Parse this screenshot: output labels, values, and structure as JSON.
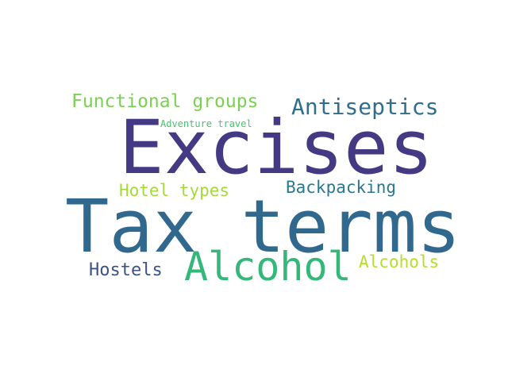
{
  "word_cloud": {
    "words": [
      {
        "text": "Excises",
        "color": "#443983"
      },
      {
        "text": "Tax terms",
        "color": "#31688e"
      },
      {
        "text": "Alcohol",
        "color": "#35b779"
      },
      {
        "text": "Antiseptics",
        "color": "#2f6f8d"
      },
      {
        "text": "Functional groups",
        "color": "#7ad151"
      },
      {
        "text": "Adventure travel",
        "color": "#4ac16d"
      },
      {
        "text": "Hotel types",
        "color": "#a5db36"
      },
      {
        "text": "Backpacking",
        "color": "#2a788e"
      },
      {
        "text": "Hostels",
        "color": "#3b528b"
      },
      {
        "text": "Alcohols",
        "color": "#b5de2b"
      }
    ]
  }
}
